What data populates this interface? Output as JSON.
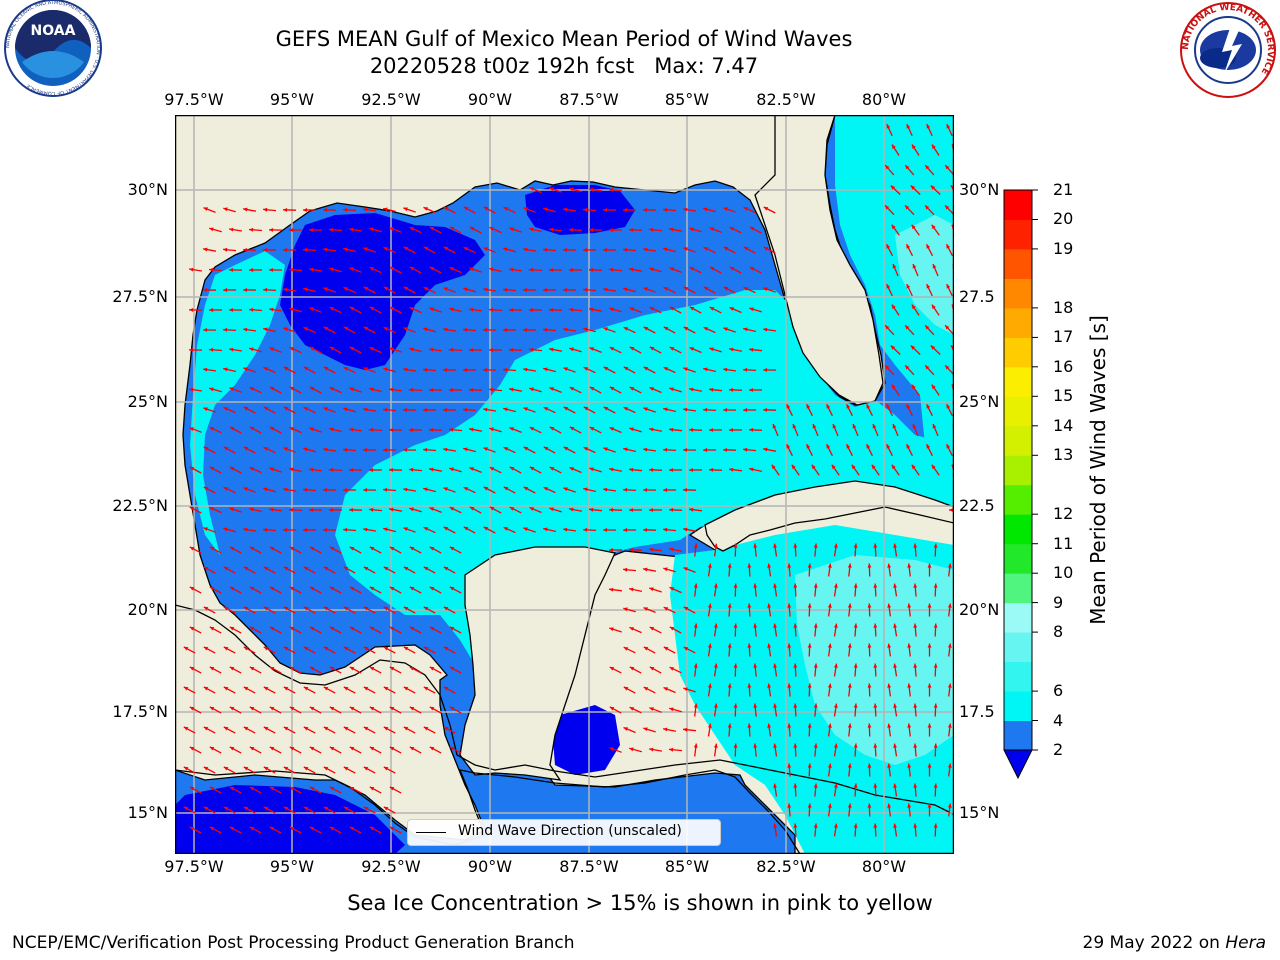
{
  "header": {
    "title_line1": "GEFS MEAN Gulf of Mexico Mean Period of Wind Waves",
    "title_line2": "20220528 t00z 192h fcst   Max: 7.47"
  },
  "logos": {
    "noaa": {
      "text": "NOAA",
      "ring_text": "NATIONAL OCEANIC AND ATMOSPHERIC ADMINISTRATION · U.S. DEPARTMENT OF COMMERCE"
    },
    "nws": {
      "ring_text": "NATIONAL WEATHER SERVICE"
    }
  },
  "map": {
    "lon_ticks": [
      "97.5°W",
      "95°W",
      "92.5°W",
      "90°W",
      "87.5°W",
      "85°W",
      "82.5°W",
      "80°W"
    ],
    "lat_ticks_left": [
      "30°N",
      "27.5°N",
      "25°N",
      "22.5°N",
      "20°N",
      "17.5°N",
      "15°N"
    ],
    "lat_ticks_right": [
      "30°N",
      "27.5",
      "25°N",
      "22.5",
      "20°N",
      "17.5",
      "15°N"
    ],
    "colors": {
      "land": "#efeddb",
      "deep_blue": "#0000ee",
      "blue": "#1e78f0",
      "cyan": "#00f5f5",
      "light_cyan": "#66f5f0",
      "arrow": "#ff0000",
      "grid": "#b4b4b4"
    },
    "legend_label": "Wind Wave Direction (unscaled)",
    "arrow_icon": "red-wind-arrow-icon"
  },
  "colorbar": {
    "title": "Mean Period of Wind Waves [s]",
    "levels": [
      "2",
      "4",
      "6",
      "8",
      "9",
      "10",
      "11",
      "12",
      "13",
      "14",
      "15",
      "16",
      "17",
      "18",
      "19",
      "20",
      "21"
    ],
    "colors": [
      "#1e78f0",
      "#00f5f5",
      "#33f5f0",
      "#66f5f0",
      "#9bfaf5",
      "#50f580",
      "#22e82a",
      "#00e800",
      "#55ee00",
      "#a8f000",
      "#d2f000",
      "#e8f000",
      "#fbee00",
      "#ffcc00",
      "#ffaa00",
      "#ff8800",
      "#ff5500",
      "#ff2200",
      "#ff0000"
    ],
    "extend_color": "#0000ee"
  },
  "footer": {
    "note": "Sea Ice Concentration > 15% is shown in pink to yellow",
    "left": "NCEP/EMC/Verification Post Processing Product Generation Branch",
    "right_date": "29 May 2022 on ",
    "right_machine": "Hera"
  }
}
